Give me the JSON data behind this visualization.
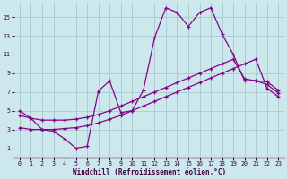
{
  "bg_color": "#cce8ec",
  "grid_color": "#aacdd4",
  "line_color": "#880088",
  "xlabel": "Windchill (Refroidissement éolien,°C)",
  "xlim": [
    -0.5,
    23.5
  ],
  "ylim": [
    0,
    16.5
  ],
  "xticks": [
    0,
    1,
    2,
    3,
    4,
    5,
    6,
    7,
    8,
    9,
    10,
    11,
    12,
    13,
    14,
    15,
    16,
    17,
    18,
    19,
    20,
    21,
    22,
    23
  ],
  "yticks": [
    1,
    3,
    5,
    7,
    9,
    11,
    13,
    15
  ],
  "line1_x": [
    0,
    1,
    2,
    3,
    4,
    5,
    6,
    7,
    8,
    9,
    10,
    11,
    12,
    13,
    14,
    15,
    16,
    17,
    18,
    19,
    20,
    21,
    22,
    23
  ],
  "line1_y": [
    5.0,
    4.2,
    3.0,
    2.8,
    2.0,
    1.0,
    1.2,
    7.1,
    8.2,
    4.8,
    5.0,
    7.2,
    12.8,
    16.0,
    15.5,
    14.0,
    15.5,
    16.0,
    13.2,
    11.0,
    8.2,
    8.2,
    8.1,
    7.2
  ],
  "line2_x": [
    0,
    1,
    2,
    3,
    4,
    5,
    6,
    7,
    8,
    9,
    10,
    11,
    12,
    13,
    14,
    15,
    16,
    17,
    18,
    19,
    20,
    21,
    22,
    23
  ],
  "line2_y": [
    3.2,
    3.0,
    3.0,
    3.0,
    3.1,
    3.2,
    3.4,
    3.7,
    4.1,
    4.5,
    5.0,
    5.5,
    6.0,
    6.5,
    7.0,
    7.5,
    8.0,
    8.5,
    9.0,
    9.5,
    10.0,
    10.5,
    7.4,
    6.5
  ],
  "line3_x": [
    0,
    1,
    2,
    3,
    4,
    5,
    6,
    7,
    8,
    9,
    10,
    11,
    12,
    13,
    14,
    15,
    16,
    17,
    18,
    19,
    20,
    21,
    22,
    23
  ],
  "line3_y": [
    4.5,
    4.2,
    4.0,
    4.0,
    4.0,
    4.1,
    4.3,
    4.6,
    5.0,
    5.5,
    6.0,
    6.5,
    7.0,
    7.5,
    8.0,
    8.5,
    9.0,
    9.5,
    10.0,
    10.5,
    8.4,
    8.2,
    7.8,
    6.9
  ]
}
